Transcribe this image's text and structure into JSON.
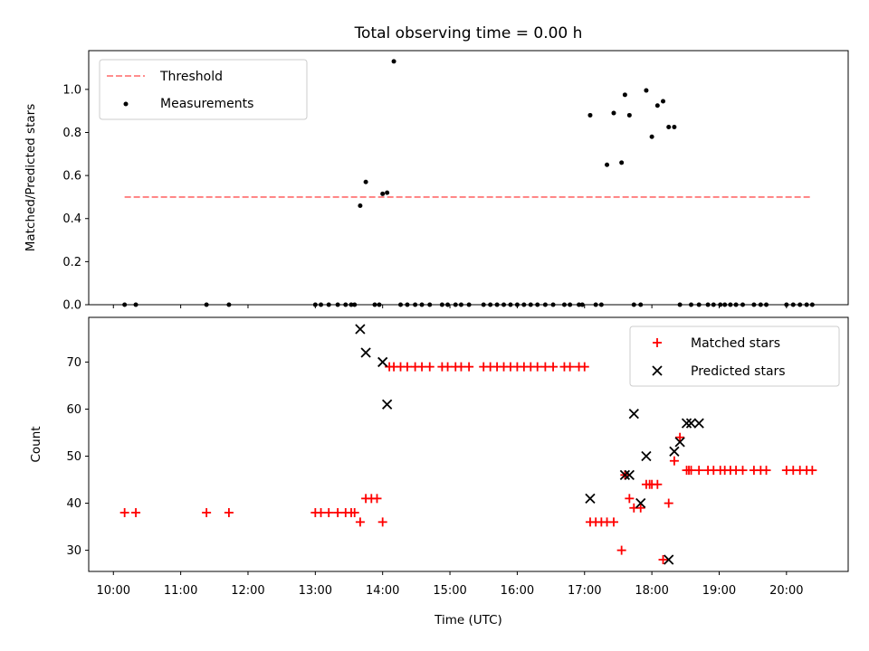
{
  "chart_data": [
    {
      "type": "scatter",
      "title": "Total observing time = 0.00 h",
      "xlabel": "",
      "ylabel": "Matched/Predicted stars",
      "xlim": [
        "09:38",
        "20:55"
      ],
      "ylim": [
        0,
        1.18
      ],
      "yticks": [
        0.0,
        0.2,
        0.4,
        0.6,
        0.8,
        1.0
      ],
      "ytick_labels": [
        "0.0",
        "0.2",
        "0.4",
        "0.6",
        "0.8",
        "1.0"
      ],
      "legend_position": "upper-left",
      "series": [
        {
          "name": "Threshold",
          "kind": "dashed-line",
          "color": "#ff7f7f",
          "x": [
            "10:10",
            "20:22"
          ],
          "y": [
            0.5,
            0.5
          ]
        },
        {
          "name": "Measurements",
          "kind": "points",
          "color": "#000000",
          "x": [
            "10:10",
            "10:20",
            "11:23",
            "11:43",
            "13:00",
            "13:05",
            "13:12",
            "13:20",
            "13:27",
            "13:32",
            "13:35",
            "13:40",
            "13:45",
            "13:53",
            "13:57",
            "14:00",
            "14:04",
            "14:10",
            "14:16",
            "14:22",
            "14:29",
            "14:35",
            "14:42",
            "14:53",
            "14:58",
            "15:05",
            "15:10",
            "15:17",
            "15:30",
            "15:36",
            "15:42",
            "15:48",
            "15:54",
            "16:00",
            "16:06",
            "16:12",
            "16:18",
            "16:25",
            "16:32",
            "16:42",
            "16:47",
            "16:55",
            "16:58",
            "17:05",
            "17:10",
            "17:15",
            "17:20",
            "17:26",
            "17:33",
            "17:36",
            "17:40",
            "17:44",
            "17:50",
            "17:55",
            "18:00",
            "18:05",
            "18:10",
            "18:15",
            "18:20",
            "18:25",
            "18:35",
            "18:42",
            "18:50",
            "18:55",
            "19:01",
            "19:05",
            "19:10",
            "19:15",
            "19:21",
            "19:31",
            "19:37",
            "19:42",
            "20:00",
            "20:06",
            "20:12",
            "20:18",
            "20:23"
          ],
          "y": [
            0,
            0,
            0,
            0,
            0,
            0,
            0,
            0,
            0,
            0,
            0,
            0.46,
            0.57,
            0,
            0,
            0.515,
            0.52,
            1.13,
            0,
            0,
            0,
            0,
            0,
            0,
            0,
            0,
            0,
            0,
            0,
            0,
            0,
            0,
            0,
            0,
            0,
            0,
            0,
            0,
            0,
            0,
            0,
            0,
            0,
            0.88,
            0,
            0,
            0.65,
            0.89,
            0.66,
            0.975,
            0.88,
            0,
            0,
            0.995,
            0.78,
            0.925,
            0.945,
            0.825,
            0.825,
            0,
            0,
            0,
            0,
            0,
            0,
            0,
            0,
            0,
            0,
            0,
            0,
            0,
            0,
            0,
            0,
            0,
            0
          ]
        }
      ]
    },
    {
      "type": "scatter",
      "title": "",
      "xlabel": "Time (UTC)",
      "ylabel": "Count",
      "xlim": [
        "09:38",
        "20:55"
      ],
      "ylim": [
        25.5,
        79.5
      ],
      "xticks": [
        "10:00",
        "11:00",
        "12:00",
        "13:00",
        "14:00",
        "15:00",
        "16:00",
        "17:00",
        "18:00",
        "19:00",
        "20:00"
      ],
      "yticks": [
        30,
        40,
        50,
        60,
        70
      ],
      "ytick_labels": [
        "30",
        "40",
        "50",
        "60",
        "70"
      ],
      "legend_position": "upper-right",
      "series": [
        {
          "name": "Matched stars",
          "marker": "plus",
          "color": "#ff0000",
          "x": [
            "10:10",
            "10:20",
            "11:23",
            "11:43",
            "13:00",
            "13:05",
            "13:12",
            "13:20",
            "13:27",
            "13:32",
            "13:35",
            "13:40",
            "13:45",
            "13:50",
            "13:55",
            "14:00",
            "14:06",
            "14:10",
            "14:16",
            "14:22",
            "14:29",
            "14:35",
            "14:42",
            "14:53",
            "14:58",
            "15:05",
            "15:10",
            "15:17",
            "15:30",
            "15:36",
            "15:42",
            "15:48",
            "15:54",
            "16:00",
            "16:06",
            "16:12",
            "16:18",
            "16:25",
            "16:32",
            "16:42",
            "16:47",
            "16:55",
            "17:00",
            "17:05",
            "17:10",
            "17:15",
            "17:20",
            "17:26",
            "17:33",
            "17:36",
            "17:40",
            "17:44",
            "17:50",
            "17:55",
            "17:58",
            "18:00",
            "18:05",
            "18:10",
            "18:15",
            "18:20",
            "18:25",
            "18:31",
            "18:33",
            "18:35",
            "18:42",
            "18:50",
            "18:55",
            "19:01",
            "19:05",
            "19:10",
            "19:15",
            "19:21",
            "19:31",
            "19:37",
            "19:42",
            "20:00",
            "20:06",
            "20:12",
            "20:18",
            "20:23"
          ],
          "y": [
            38,
            38,
            38,
            38,
            38,
            38,
            38,
            38,
            38,
            38,
            38,
            36,
            41,
            41,
            41,
            36,
            69,
            69,
            69,
            69,
            69,
            69,
            69,
            69,
            69,
            69,
            69,
            69,
            69,
            69,
            69,
            69,
            69,
            69,
            69,
            69,
            69,
            69,
            69,
            69,
            69,
            69,
            69,
            36,
            36,
            36,
            36,
            36,
            30,
            46,
            41,
            39,
            39,
            44,
            44,
            44,
            44,
            28,
            40,
            49,
            54,
            47,
            47,
            47,
            47,
            47,
            47,
            47,
            47,
            47,
            47,
            47,
            47,
            47,
            47,
            47,
            47,
            47,
            47,
            47
          ]
        },
        {
          "name": "Predicted stars",
          "marker": "x",
          "color": "#000000",
          "x": [
            "13:40",
            "13:45",
            "14:00",
            "14:04",
            "17:05",
            "17:36",
            "17:40",
            "17:44",
            "17:50",
            "17:55",
            "18:15",
            "18:20",
            "18:25",
            "18:31",
            "18:35",
            "18:42"
          ],
          "y": [
            77,
            72,
            70,
            61,
            41,
            46,
            46,
            59,
            40,
            50,
            28,
            51,
            53,
            57,
            57,
            57
          ]
        }
      ]
    }
  ]
}
